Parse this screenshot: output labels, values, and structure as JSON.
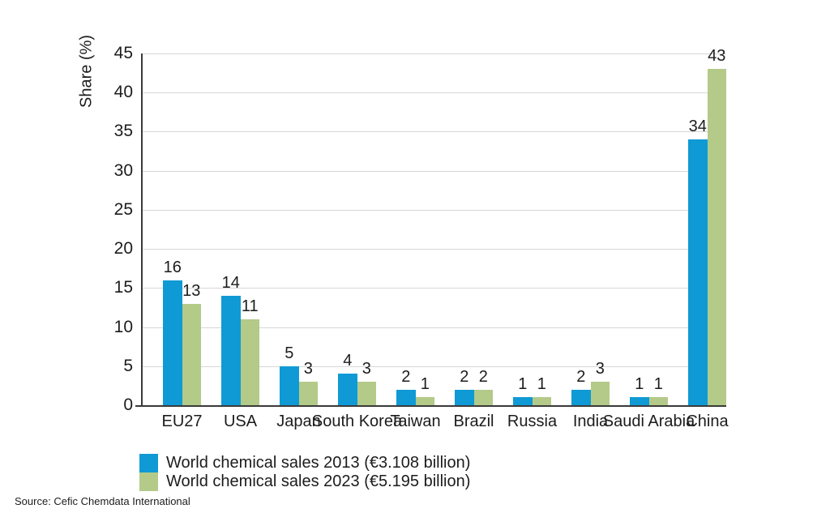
{
  "chart_data": {
    "type": "bar",
    "title": "",
    "ylabel": "Share (%)",
    "xlabel": "",
    "ylim": [
      0,
      45
    ],
    "ytick_step": 5,
    "grid": true,
    "legend_position": "bottom-left",
    "categories": [
      "EU27",
      "USA",
      "Japan",
      "South Korea",
      "Taiwan",
      "Brazil",
      "Russia",
      "India",
      "Saudi Arabia",
      "China"
    ],
    "series": [
      {
        "name": "World chemical sales 2013 (€3.108 billion)",
        "color": "#0f9ad5",
        "values": [
          16,
          14,
          5,
          4,
          2,
          2,
          1,
          2,
          1,
          34
        ]
      },
      {
        "name": "World chemical sales 2023 (€5.195 billion)",
        "color": "#b3ca89",
        "values": [
          13,
          11,
          3,
          3,
          1,
          2,
          1,
          3,
          1,
          43
        ]
      }
    ],
    "source": "Source: Cefic Chemdata International"
  },
  "colors": {
    "background": "#ffffff",
    "gridline": "#d7d7d7",
    "axis": "#3a3a3a",
    "text": "#1c1c1c",
    "series_2013": "#0f9ad5",
    "series_2023": "#b3ca89"
  }
}
